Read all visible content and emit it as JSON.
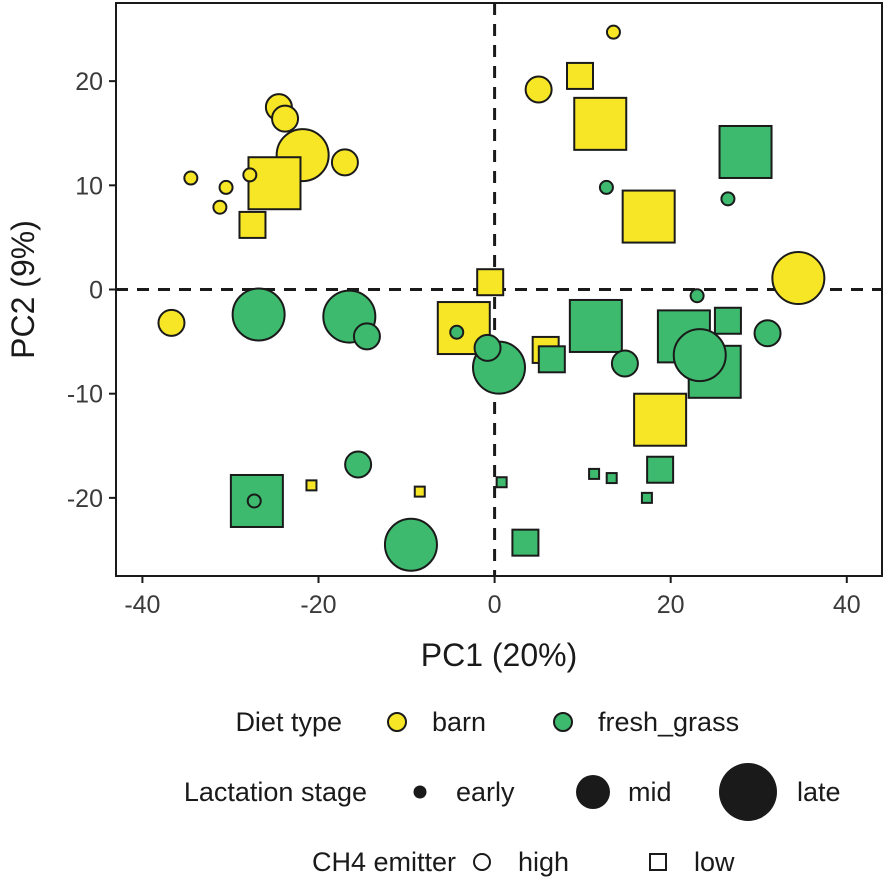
{
  "chart_data": {
    "type": "scatter",
    "xlabel": "PC1 (20%)",
    "ylabel": "PC2 (9%)",
    "xlim": [
      -43,
      44
    ],
    "ylim": [
      -27.5,
      27.5
    ],
    "xticks": [
      -40,
      -20,
      0,
      20,
      40
    ],
    "yticks": [
      -20,
      -10,
      0,
      10,
      20
    ],
    "reference_lines": {
      "x": 0,
      "y": 0,
      "style": "dashed"
    },
    "colors": {
      "barn": "#f7e626",
      "fresh_grass": "#3dba6e",
      "stroke": "#1a1a1a"
    },
    "points": [
      {
        "x": -24.5,
        "y": 17.5,
        "diet": "barn",
        "stage": "mid",
        "emitter": "high"
      },
      {
        "x": -23.8,
        "y": 16.4,
        "diet": "barn",
        "stage": "mid",
        "emitter": "high"
      },
      {
        "x": -21.8,
        "y": 12.9,
        "diet": "barn",
        "stage": "late",
        "emitter": "high"
      },
      {
        "x": -17.0,
        "y": 12.2,
        "diet": "barn",
        "stage": "mid",
        "emitter": "high"
      },
      {
        "x": -25.0,
        "y": 10.2,
        "diet": "barn",
        "stage": "late",
        "emitter": "low"
      },
      {
        "x": -34.5,
        "y": 10.7,
        "diet": "barn",
        "stage": "early",
        "emitter": "high"
      },
      {
        "x": -30.5,
        "y": 9.8,
        "diet": "barn",
        "stage": "early",
        "emitter": "high"
      },
      {
        "x": -27.8,
        "y": 11.0,
        "diet": "barn",
        "stage": "early",
        "emitter": "high"
      },
      {
        "x": -31.2,
        "y": 7.9,
        "diet": "barn",
        "stage": "early",
        "emitter": "high"
      },
      {
        "x": -27.5,
        "y": 6.2,
        "diet": "barn",
        "stage": "mid",
        "emitter": "low"
      },
      {
        "x": -36.7,
        "y": -3.2,
        "diet": "barn",
        "stage": "mid",
        "emitter": "high"
      },
      {
        "x": -26.8,
        "y": -2.4,
        "diet": "fresh_grass",
        "stage": "late",
        "emitter": "high"
      },
      {
        "x": -16.5,
        "y": -2.6,
        "diet": "fresh_grass",
        "stage": "late",
        "emitter": "high"
      },
      {
        "x": -14.5,
        "y": -4.5,
        "diet": "fresh_grass",
        "stage": "mid",
        "emitter": "high"
      },
      {
        "x": -3.5,
        "y": -3.7,
        "diet": "barn",
        "stage": "late",
        "emitter": "low"
      },
      {
        "x": -4.3,
        "y": -4.1,
        "diet": "fresh_grass",
        "stage": "early",
        "emitter": "high"
      },
      {
        "x": -0.5,
        "y": 0.7,
        "diet": "barn",
        "stage": "mid",
        "emitter": "low"
      },
      {
        "x": -0.8,
        "y": -5.6,
        "diet": "fresh_grass",
        "stage": "mid",
        "emitter": "high"
      },
      {
        "x": 0.5,
        "y": -7.5,
        "diet": "fresh_grass",
        "stage": "late",
        "emitter": "high"
      },
      {
        "x": 5.8,
        "y": -5.8,
        "diet": "barn",
        "stage": "mid",
        "emitter": "low"
      },
      {
        "x": 6.5,
        "y": -6.7,
        "diet": "fresh_grass",
        "stage": "mid",
        "emitter": "low"
      },
      {
        "x": 13.5,
        "y": 24.7,
        "diet": "barn",
        "stage": "early",
        "emitter": "high"
      },
      {
        "x": 5.0,
        "y": 19.2,
        "diet": "barn",
        "stage": "mid",
        "emitter": "high"
      },
      {
        "x": 9.7,
        "y": 20.5,
        "diet": "barn",
        "stage": "mid",
        "emitter": "low"
      },
      {
        "x": 12.0,
        "y": 15.9,
        "diet": "barn",
        "stage": "late",
        "emitter": "low"
      },
      {
        "x": 17.5,
        "y": 7.0,
        "diet": "barn",
        "stage": "late",
        "emitter": "low"
      },
      {
        "x": 12.7,
        "y": 9.8,
        "diet": "fresh_grass",
        "stage": "early",
        "emitter": "high"
      },
      {
        "x": 28.5,
        "y": 13.2,
        "diet": "fresh_grass",
        "stage": "late",
        "emitter": "low"
      },
      {
        "x": 26.5,
        "y": 8.7,
        "diet": "fresh_grass",
        "stage": "early",
        "emitter": "high"
      },
      {
        "x": 34.5,
        "y": 1.1,
        "diet": "barn",
        "stage": "late",
        "emitter": "high"
      },
      {
        "x": 11.5,
        "y": -3.5,
        "diet": "fresh_grass",
        "stage": "late",
        "emitter": "low"
      },
      {
        "x": 14.8,
        "y": -7.1,
        "diet": "fresh_grass",
        "stage": "mid",
        "emitter": "high"
      },
      {
        "x": 23.0,
        "y": -0.6,
        "diet": "fresh_grass",
        "stage": "early",
        "emitter": "high"
      },
      {
        "x": 21.5,
        "y": -4.5,
        "diet": "fresh_grass",
        "stage": "late",
        "emitter": "low"
      },
      {
        "x": 25.0,
        "y": -7.9,
        "diet": "fresh_grass",
        "stage": "late",
        "emitter": "low"
      },
      {
        "x": 23.3,
        "y": -6.3,
        "diet": "fresh_grass",
        "stage": "late",
        "emitter": "high"
      },
      {
        "x": 26.5,
        "y": -3.0,
        "diet": "fresh_grass",
        "stage": "mid",
        "emitter": "low"
      },
      {
        "x": 31.0,
        "y": -4.2,
        "diet": "fresh_grass",
        "stage": "mid",
        "emitter": "high"
      },
      {
        "x": 18.8,
        "y": -12.5,
        "diet": "barn",
        "stage": "late",
        "emitter": "low"
      },
      {
        "x": 18.8,
        "y": -17.3,
        "diet": "fresh_grass",
        "stage": "mid",
        "emitter": "low"
      },
      {
        "x": 11.3,
        "y": -17.7,
        "diet": "fresh_grass",
        "stage": "early",
        "emitter": "low"
      },
      {
        "x": 13.3,
        "y": -18.1,
        "diet": "fresh_grass",
        "stage": "early",
        "emitter": "low"
      },
      {
        "x": 17.3,
        "y": -20.0,
        "diet": "fresh_grass",
        "stage": "early",
        "emitter": "low"
      },
      {
        "x": 0.8,
        "y": -18.5,
        "diet": "fresh_grass",
        "stage": "early",
        "emitter": "low"
      },
      {
        "x": 3.5,
        "y": -24.3,
        "diet": "fresh_grass",
        "stage": "mid",
        "emitter": "low"
      },
      {
        "x": -27.0,
        "y": -20.3,
        "diet": "fresh_grass",
        "stage": "late",
        "emitter": "low"
      },
      {
        "x": -27.3,
        "y": -20.3,
        "diet": "fresh_grass",
        "stage": "early",
        "emitter": "high"
      },
      {
        "x": -15.5,
        "y": -16.8,
        "diet": "fresh_grass",
        "stage": "mid",
        "emitter": "high"
      },
      {
        "x": -20.8,
        "y": -18.8,
        "diet": "barn",
        "stage": "early",
        "emitter": "low"
      },
      {
        "x": -8.5,
        "y": -19.4,
        "diet": "barn",
        "stage": "early",
        "emitter": "low"
      },
      {
        "x": -9.5,
        "y": -24.5,
        "diet": "fresh_grass",
        "stage": "late",
        "emitter": "high"
      }
    ],
    "legend": {
      "diet": {
        "title": "Diet type",
        "items": [
          {
            "key": "barn",
            "label": "barn"
          },
          {
            "key": "fresh_grass",
            "label": "fresh_grass"
          }
        ]
      },
      "stage": {
        "title": "Lactation stage",
        "items": [
          {
            "key": "early",
            "label": "early"
          },
          {
            "key": "mid",
            "label": "mid"
          },
          {
            "key": "late",
            "label": "late"
          }
        ]
      },
      "emitter": {
        "title": "CH4 emitter",
        "items": [
          {
            "key": "high",
            "label": "high"
          },
          {
            "key": "low",
            "label": "low"
          }
        ]
      }
    }
  }
}
